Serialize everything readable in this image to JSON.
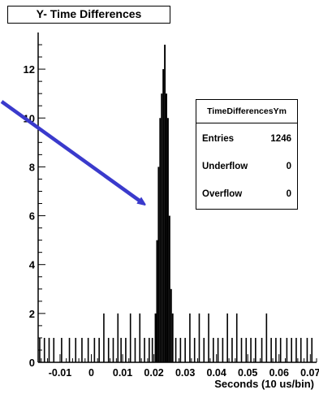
{
  "chart_data": {
    "type": "bar",
    "title": "Y- Time Differences",
    "xlabel": "Seconds (10 us/bin)",
    "ylabel": "",
    "xlim": [
      -0.017,
      0.072
    ],
    "ylim": [
      0,
      13.5
    ],
    "x_ticks": [
      "-0.01",
      "0",
      "0.01",
      "0.02",
      "0.03",
      "0.04",
      "0.05",
      "0.06",
      "0.07"
    ],
    "x_tick_values": [
      -0.01,
      0,
      0.01,
      0.02,
      0.03,
      0.04,
      0.05,
      0.06,
      0.07
    ],
    "y_ticks": [
      "0",
      "2",
      "4",
      "6",
      "8",
      "10",
      "12"
    ],
    "y_tick_values": [
      0,
      2,
      4,
      6,
      8,
      10,
      12
    ],
    "stats": {
      "name": "TimeDifferencesYm",
      "rows": [
        {
          "label": "Entries",
          "value": "1246"
        },
        {
          "label": "Underflow",
          "value": "0"
        },
        {
          "label": "Overflow",
          "value": "0"
        }
      ]
    },
    "peak_bins": [
      {
        "x": 0.0205,
        "y": 2
      },
      {
        "x": 0.021,
        "y": 5
      },
      {
        "x": 0.0215,
        "y": 8
      },
      {
        "x": 0.022,
        "y": 10
      },
      {
        "x": 0.0225,
        "y": 11
      },
      {
        "x": 0.023,
        "y": 12
      },
      {
        "x": 0.0235,
        "y": 13
      },
      {
        "x": 0.024,
        "y": 11
      },
      {
        "x": 0.0245,
        "y": 10
      },
      {
        "x": 0.025,
        "y": 6
      },
      {
        "x": 0.0255,
        "y": 3
      },
      {
        "x": 0.026,
        "y": 2
      }
    ],
    "background_bins": [
      {
        "x": -0.0165,
        "y": 1
      },
      {
        "x": -0.015,
        "y": 1
      },
      {
        "x": -0.0135,
        "y": 1
      },
      {
        "x": -0.012,
        "y": 1
      },
      {
        "x": -0.0095,
        "y": 1
      },
      {
        "x": -0.007,
        "y": 1
      },
      {
        "x": -0.005,
        "y": 1
      },
      {
        "x": -0.003,
        "y": 1
      },
      {
        "x": -0.001,
        "y": 1
      },
      {
        "x": 0.001,
        "y": 1
      },
      {
        "x": 0.0025,
        "y": 1
      },
      {
        "x": 0.004,
        "y": 2
      },
      {
        "x": 0.0055,
        "y": 1
      },
      {
        "x": 0.007,
        "y": 1
      },
      {
        "x": 0.0085,
        "y": 2
      },
      {
        "x": 0.0095,
        "y": 1
      },
      {
        "x": 0.011,
        "y": 1
      },
      {
        "x": 0.0125,
        "y": 2
      },
      {
        "x": 0.014,
        "y": 1
      },
      {
        "x": 0.0155,
        "y": 2
      },
      {
        "x": 0.017,
        "y": 1
      },
      {
        "x": 0.0185,
        "y": 1
      },
      {
        "x": 0.0195,
        "y": 1
      },
      {
        "x": 0.027,
        "y": 1
      },
      {
        "x": 0.0285,
        "y": 1
      },
      {
        "x": 0.03,
        "y": 1
      },
      {
        "x": 0.0315,
        "y": 2
      },
      {
        "x": 0.033,
        "y": 1
      },
      {
        "x": 0.0345,
        "y": 2
      },
      {
        "x": 0.036,
        "y": 1
      },
      {
        "x": 0.0375,
        "y": 2
      },
      {
        "x": 0.039,
        "y": 1
      },
      {
        "x": 0.0405,
        "y": 1
      },
      {
        "x": 0.042,
        "y": 1
      },
      {
        "x": 0.0435,
        "y": 2
      },
      {
        "x": 0.045,
        "y": 1
      },
      {
        "x": 0.0465,
        "y": 2
      },
      {
        "x": 0.048,
        "y": 1
      },
      {
        "x": 0.0495,
        "y": 1
      },
      {
        "x": 0.051,
        "y": 1
      },
      {
        "x": 0.0525,
        "y": 1
      },
      {
        "x": 0.0545,
        "y": 1
      },
      {
        "x": 0.056,
        "y": 2
      },
      {
        "x": 0.0575,
        "y": 1
      },
      {
        "x": 0.059,
        "y": 1
      },
      {
        "x": 0.0605,
        "y": 1
      },
      {
        "x": 0.0625,
        "y": 1
      },
      {
        "x": 0.064,
        "y": 1
      },
      {
        "x": 0.0655,
        "y": 1
      },
      {
        "x": 0.067,
        "y": 1
      },
      {
        "x": 0.069,
        "y": 1
      },
      {
        "x": 0.0705,
        "y": 1
      }
    ],
    "colors": {
      "histogram": "#000000",
      "arrow": "#3a3acc",
      "background": "#ffffff"
    },
    "annotations": [
      {
        "type": "arrow",
        "description": "blue arrow pointing at peak"
      }
    ]
  }
}
